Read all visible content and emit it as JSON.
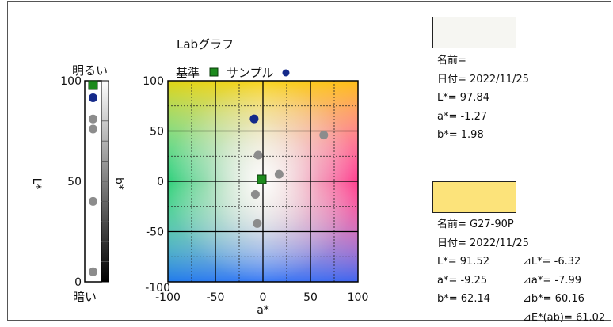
{
  "chart_data": {
    "type": "scatter",
    "title": "Labグラフ",
    "legend": {
      "reference_label": "基準",
      "sample_label": "サンプル",
      "placement": "top"
    },
    "ab_plot": {
      "xlabel": "a*",
      "xlim": [
        -100,
        100
      ],
      "ylim": [
        -100,
        100
      ],
      "xticks": [
        "-100",
        "-50",
        "0",
        "50",
        "100"
      ],
      "yticks": [
        "-50",
        "0",
        "50",
        "100"
      ],
      "ytick0": "-100",
      "grid": true,
      "reference": {
        "a": -1.27,
        "b": 1.98
      },
      "sample": {
        "a": -9.25,
        "b": 62.14
      },
      "history": [
        {
          "a": -5,
          "b": 26
        },
        {
          "a": 17,
          "b": 7
        },
        {
          "a": -8,
          "b": -13
        },
        {
          "a": -6,
          "b": -42
        },
        {
          "a": 64,
          "b": 46
        }
      ]
    },
    "l_plot": {
      "ylabel": "L*",
      "ylabel_right": "b*",
      "top_label": "明るい",
      "bottom_label": "暗い",
      "ylim": [
        0,
        100
      ],
      "yticks": [
        "0",
        "50",
        "100"
      ],
      "reference": 97.84,
      "sample": 91.52,
      "history": [
        81,
        76,
        40,
        5
      ]
    }
  },
  "reference": {
    "color": "#f6f6f2",
    "name_line": "名前=",
    "date_line": "日付= 2022/11/25",
    "l_line": "L*= 97.84",
    "a_line": "a*= -1.27",
    "b_line": "b*= 1.98"
  },
  "sample": {
    "color": "#fce37a",
    "name_line": "名前= G27-90P",
    "date_line": "日付= 2022/11/25",
    "l_line": "L*= 91.52",
    "a_line": "a*= -9.25",
    "b_line": "b*= 62.14",
    "dl_line": "⊿L*= -6.32",
    "da_line": "⊿a*= -7.99",
    "db_line": "⊿b*= 60.16",
    "de_line": "⊿E*(ab)= 61.02"
  },
  "colors": {
    "reference_marker": "#1c8a1c",
    "sample_marker": "#152a8a",
    "history_marker": "#8c8c8c"
  }
}
